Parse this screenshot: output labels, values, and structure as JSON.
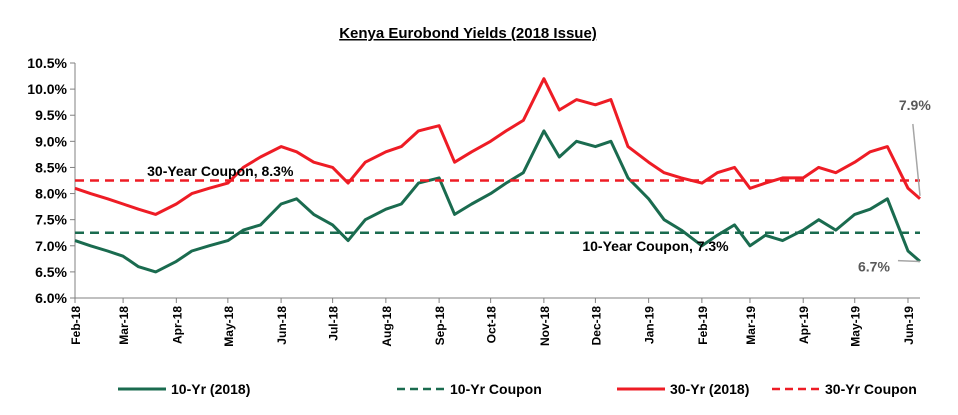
{
  "chart_data": {
    "type": "line",
    "title": "Kenya Eurobond Yields (2018 Issue)",
    "xlabel": "",
    "ylabel": "",
    "ylim": [
      6.0,
      10.5
    ],
    "y_ticks": [
      "6.0%",
      "6.5%",
      "7.0%",
      "7.5%",
      "8.0%",
      "8.5%",
      "9.0%",
      "9.5%",
      "10.0%",
      "10.5%"
    ],
    "x_tick_labels": [
      "Feb-18",
      "Mar-18",
      "Apr-18",
      "May-18",
      "Jun-18",
      "Jul-18",
      "Aug-18",
      "Sep-18",
      "Oct-18",
      "Nov-18",
      "Dec-18",
      "Jan-19",
      "Feb-19",
      "Mar-19",
      "Apr-19",
      "May-19",
      "Jun-19"
    ],
    "x_range": [
      "2018-02-01",
      "2019-06-08"
    ],
    "grid": false,
    "legend_position": "bottom",
    "series": [
      {
        "name": "10-Yr (2018)",
        "color": "#1a6b4f",
        "style": "solid",
        "x": [
          "2018-02-01",
          "2018-02-10",
          "2018-02-20",
          "2018-03-01",
          "2018-03-10",
          "2018-03-20",
          "2018-04-01",
          "2018-04-10",
          "2018-04-20",
          "2018-05-01",
          "2018-05-10",
          "2018-05-20",
          "2018-06-01",
          "2018-06-10",
          "2018-06-20",
          "2018-07-01",
          "2018-07-10",
          "2018-07-20",
          "2018-08-01",
          "2018-08-10",
          "2018-08-20",
          "2018-09-01",
          "2018-09-10",
          "2018-09-20",
          "2018-10-01",
          "2018-10-10",
          "2018-10-20",
          "2018-11-01",
          "2018-11-10",
          "2018-11-20",
          "2018-12-01",
          "2018-12-10",
          "2018-12-20",
          "2019-01-01",
          "2019-01-10",
          "2019-01-20",
          "2019-02-01",
          "2019-02-10",
          "2019-02-20",
          "2019-03-01",
          "2019-03-10",
          "2019-03-20",
          "2019-04-01",
          "2019-04-10",
          "2019-04-20",
          "2019-05-01",
          "2019-05-10",
          "2019-05-20",
          "2019-06-01",
          "2019-06-08"
        ],
        "values": [
          7.1,
          7.0,
          6.9,
          6.8,
          6.6,
          6.5,
          6.7,
          6.9,
          7.0,
          7.1,
          7.3,
          7.4,
          7.8,
          7.9,
          7.6,
          7.4,
          7.1,
          7.5,
          7.7,
          7.8,
          8.2,
          8.3,
          7.6,
          7.8,
          8.0,
          8.2,
          8.4,
          9.2,
          8.7,
          9.0,
          8.9,
          9.0,
          8.3,
          7.9,
          7.5,
          7.3,
          7.0,
          7.2,
          7.4,
          7.0,
          7.2,
          7.1,
          7.3,
          7.5,
          7.3,
          7.6,
          7.7,
          7.9,
          6.9,
          6.7
        ]
      },
      {
        "name": "10-Yr Coupon",
        "color": "#1a6b4f",
        "style": "dashed",
        "x": [
          "2018-02-01",
          "2019-06-08"
        ],
        "values": [
          7.25,
          7.25
        ]
      },
      {
        "name": "30-Yr (2018)",
        "color": "#ee1c25",
        "style": "solid",
        "x": [
          "2018-02-01",
          "2018-02-10",
          "2018-02-20",
          "2018-03-01",
          "2018-03-10",
          "2018-03-20",
          "2018-04-01",
          "2018-04-10",
          "2018-04-20",
          "2018-05-01",
          "2018-05-10",
          "2018-05-20",
          "2018-06-01",
          "2018-06-10",
          "2018-06-20",
          "2018-07-01",
          "2018-07-10",
          "2018-07-20",
          "2018-08-01",
          "2018-08-10",
          "2018-08-20",
          "2018-09-01",
          "2018-09-10",
          "2018-09-20",
          "2018-10-01",
          "2018-10-10",
          "2018-10-20",
          "2018-11-01",
          "2018-11-10",
          "2018-11-20",
          "2018-12-01",
          "2018-12-10",
          "2018-12-20",
          "2019-01-01",
          "2019-01-10",
          "2019-01-20",
          "2019-02-01",
          "2019-02-10",
          "2019-02-20",
          "2019-03-01",
          "2019-03-10",
          "2019-03-20",
          "2019-04-01",
          "2019-04-10",
          "2019-04-20",
          "2019-05-01",
          "2019-05-10",
          "2019-05-20",
          "2019-06-01",
          "2019-06-08"
        ],
        "values": [
          8.1,
          8.0,
          7.9,
          7.8,
          7.7,
          7.6,
          7.8,
          8.0,
          8.1,
          8.2,
          8.5,
          8.7,
          8.9,
          8.8,
          8.6,
          8.5,
          8.2,
          8.6,
          8.8,
          8.9,
          9.2,
          9.3,
          8.6,
          8.8,
          9.0,
          9.2,
          9.4,
          10.2,
          9.6,
          9.8,
          9.7,
          9.8,
          8.9,
          8.6,
          8.4,
          8.3,
          8.2,
          8.4,
          8.5,
          8.1,
          8.2,
          8.3,
          8.3,
          8.5,
          8.4,
          8.6,
          8.8,
          8.9,
          8.1,
          7.9
        ]
      },
      {
        "name": "30-Yr Coupon",
        "color": "#ee1c25",
        "style": "dashed",
        "x": [
          "2018-02-01",
          "2019-06-08"
        ],
        "values": [
          8.25,
          8.25
        ]
      }
    ],
    "annotations": [
      {
        "text": "30-Year Coupon,  8.3%",
        "x": "2018-03-15",
        "y": 8.3
      },
      {
        "text": "10-Year Coupon,  7.3%",
        "x": "2019-01-05",
        "y": 6.9
      },
      {
        "text": "7.9%",
        "x": "2019-06-05",
        "y": 9.6
      },
      {
        "text": "6.7%",
        "x": "2019-05-25",
        "y": 6.6
      }
    ]
  }
}
